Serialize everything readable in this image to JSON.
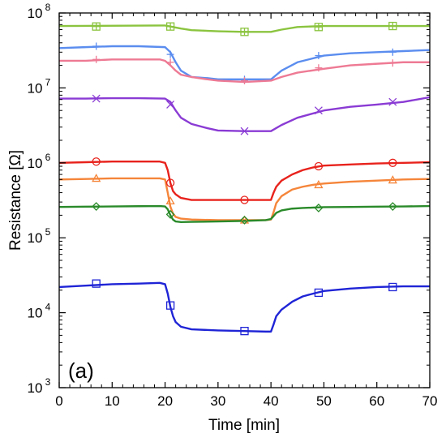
{
  "chart_data": {
    "type": "line",
    "panel_label": "(a)",
    "xlabel": "Time [min]",
    "ylabel": "Resistance [Ω]",
    "xlim": [
      0,
      70
    ],
    "ylim": [
      1000,
      100000000
    ],
    "yscale": "log",
    "x_ticks": [
      0,
      10,
      20,
      30,
      40,
      50,
      60,
      70
    ],
    "y_ticks": [
      {
        "base": "10",
        "exp": "3",
        "value": 1000
      },
      {
        "base": "10",
        "exp": "4",
        "value": 10000
      },
      {
        "base": "10",
        "exp": "5",
        "value": 100000
      },
      {
        "base": "10",
        "exp": "6",
        "value": 1000000
      },
      {
        "base": "10",
        "exp": "7",
        "value": 10000000
      },
      {
        "base": "10",
        "exp": "8",
        "value": 100000000
      }
    ],
    "grid": false,
    "series": [
      {
        "color": "#8bc43f",
        "marker": "square-plus",
        "x": [
          0,
          19,
          20,
          21,
          23,
          25,
          30,
          35,
          40,
          42,
          45,
          50,
          55,
          60,
          65,
          70
        ],
        "y": [
          67000000,
          68000000,
          68000000,
          66000000,
          62000000,
          59000000,
          57000000,
          56000000,
          56000000,
          60000000,
          65000000,
          67000000,
          67000000,
          67000000,
          67000000,
          67000000
        ],
        "markers_x": [
          7,
          21,
          35,
          49,
          63
        ],
        "markers_y": [
          66000000,
          66000000,
          56000000,
          65000000,
          67000000
        ]
      },
      {
        "color": "#5b8def",
        "marker": "plus",
        "x": [
          0,
          5,
          10,
          15,
          20,
          21,
          22,
          23,
          25,
          28,
          30,
          35,
          40,
          42,
          45,
          50,
          55,
          60,
          65,
          70
        ],
        "y": [
          34000000,
          35000000,
          36000000,
          36000000,
          35000000,
          30000000,
          22000000,
          17000000,
          14000000,
          13500000,
          13000000,
          13000000,
          13000000,
          17000000,
          22000000,
          27000000,
          29000000,
          30000000,
          31000000,
          32000000
        ],
        "markers_x": [
          7,
          21,
          35,
          49,
          63
        ],
        "markers_y": [
          36000000,
          28000000,
          13000000,
          27000000,
          30000000
        ]
      },
      {
        "color": "#ee7a94",
        "marker": "plus",
        "x": [
          0,
          5,
          10,
          15,
          19,
          20,
          21,
          22,
          23,
          25,
          28,
          30,
          35,
          40,
          42,
          45,
          50,
          55,
          60,
          65,
          70
        ],
        "y": [
          23000000,
          23000000,
          24000000,
          24000000,
          24000000,
          23000000,
          20000000,
          17000000,
          15000000,
          14000000,
          13000000,
          12500000,
          12000000,
          12500000,
          14000000,
          16000000,
          18000000,
          20000000,
          21000000,
          22000000,
          22000000
        ],
        "markers_x": [
          7,
          21,
          35,
          49,
          63
        ],
        "markers_y": [
          24000000,
          22000000,
          12500000,
          18500000,
          21500000
        ]
      },
      {
        "color": "#8a3bd4",
        "marker": "x",
        "x": [
          0,
          5,
          10,
          15,
          20,
          21,
          22,
          23,
          25,
          28,
          30,
          35,
          40,
          42,
          45,
          50,
          55,
          60,
          65,
          70
        ],
        "y": [
          7200000,
          7200000,
          7300000,
          7300000,
          7200000,
          6500000,
          5000000,
          4000000,
          3300000,
          2900000,
          2700000,
          2650000,
          2650000,
          3200000,
          4000000,
          5000000,
          5600000,
          6000000,
          6500000,
          7500000
        ],
        "markers_x": [
          7,
          21,
          35,
          49,
          63
        ],
        "markers_y": [
          7200000,
          6000000,
          2650000,
          5000000,
          6500000
        ]
      },
      {
        "color": "#e8221c",
        "marker": "circle",
        "x": [
          0,
          5,
          10,
          15,
          19,
          20,
          20.5,
          21,
          21.5,
          22,
          23,
          25,
          30,
          35,
          39,
          40,
          40.5,
          41,
          42,
          44,
          46,
          48,
          50,
          55,
          60,
          65,
          70
        ],
        "y": [
          1000000,
          1020000,
          1040000,
          1040000,
          1040000,
          1000000,
          800000,
          540000,
          420000,
          380000,
          340000,
          320000,
          320000,
          320000,
          320000,
          320000,
          400000,
          480000,
          580000,
          700000,
          800000,
          870000,
          920000,
          950000,
          980000,
          1000000,
          1020000
        ],
        "markers_x": [
          7,
          21,
          35,
          49,
          63
        ],
        "markers_y": [
          1040000,
          540000,
          320000,
          900000,
          1000000
        ]
      },
      {
        "color": "#f5853a",
        "marker": "triangle",
        "x": [
          0,
          5,
          10,
          15,
          19,
          20,
          20.5,
          21,
          21.5,
          22,
          23,
          25,
          30,
          35,
          39,
          40,
          40.5,
          41,
          42,
          44,
          46,
          48,
          50,
          55,
          60,
          65,
          70
        ],
        "y": [
          600000,
          610000,
          620000,
          620000,
          620000,
          600000,
          400000,
          260000,
          210000,
          190000,
          180000,
          175000,
          172000,
          172000,
          172000,
          175000,
          220000,
          290000,
          360000,
          440000,
          480000,
          510000,
          530000,
          560000,
          580000,
          600000,
          610000
        ],
        "markers_x": [
          7,
          21,
          35,
          49,
          63
        ],
        "markers_y": [
          620000,
          310000,
          172000,
          510000,
          590000
        ]
      },
      {
        "color": "#2a8a2a",
        "marker": "diamond",
        "x": [
          0,
          5,
          10,
          15,
          19,
          20,
          20.5,
          21,
          21.5,
          22,
          23,
          25,
          30,
          35,
          39,
          40,
          40.5,
          41,
          42,
          44,
          46,
          48,
          50,
          55,
          60,
          65,
          70
        ],
        "y": [
          258000,
          260000,
          262000,
          264000,
          265000,
          262000,
          240000,
          200000,
          175000,
          165000,
          162000,
          163000,
          165000,
          168000,
          172000,
          178000,
          195000,
          215000,
          232000,
          245000,
          250000,
          253000,
          256000,
          258000,
          260000,
          262000,
          265000
        ],
        "markers_x": [
          7,
          21,
          35,
          49,
          63
        ],
        "markers_y": [
          262000,
          205000,
          172000,
          250000,
          262000
        ]
      },
      {
        "color": "#1f24d6",
        "marker": "square",
        "x": [
          0,
          5,
          10,
          15,
          19,
          20,
          20.5,
          21,
          21.5,
          22,
          23,
          25,
          30,
          35,
          39,
          40,
          40.5,
          41,
          42,
          44,
          46,
          48,
          50,
          55,
          60,
          65,
          70
        ],
        "y": [
          22000,
          23000,
          24000,
          24500,
          25000,
          24000,
          18000,
          12000,
          9000,
          7500,
          6500,
          6000,
          5800,
          5700,
          5600,
          5600,
          7000,
          9000,
          11000,
          14000,
          16500,
          18000,
          19500,
          21000,
          22000,
          22500,
          22500
        ],
        "markers_x": [
          7,
          21,
          35,
          49,
          63
        ],
        "markers_y": [
          24500,
          12500,
          5700,
          18500,
          22000
        ]
      }
    ]
  }
}
